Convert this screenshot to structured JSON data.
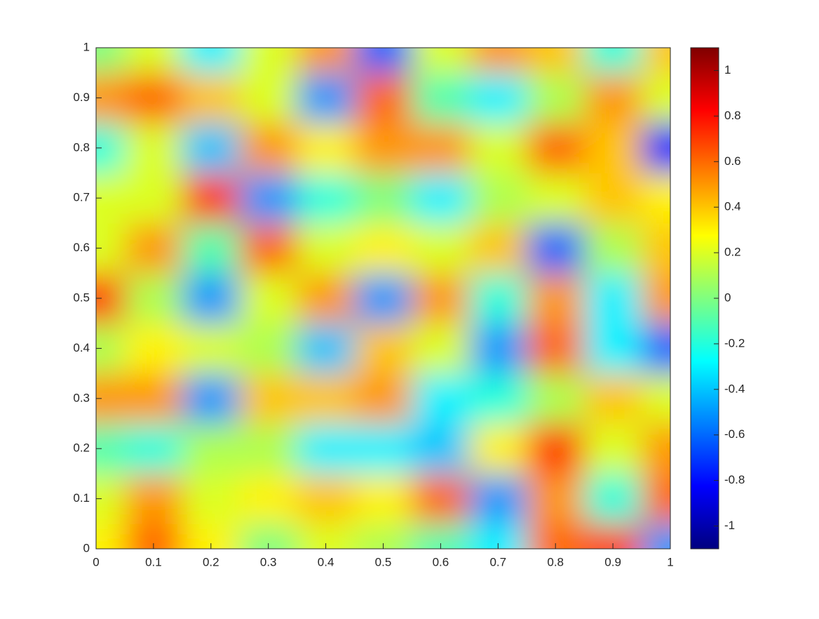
{
  "chart_data": {
    "type": "contour",
    "colormap": "jet",
    "x": [
      0,
      0.1,
      0.2,
      0.3,
      0.4,
      0.5,
      0.6,
      0.7,
      0.8,
      0.9,
      1
    ],
    "y": [
      0,
      0.1,
      0.2,
      0.3,
      0.4,
      0.5,
      0.6,
      0.7,
      0.8,
      0.9,
      1
    ],
    "z": [
      [
        0.3,
        0.6,
        0.3,
        0.0,
        0.2,
        0.1,
        -0.1,
        -0.3,
        0.6,
        0.7,
        -0.5
      ],
      [
        0.2,
        0.5,
        0.2,
        0.3,
        0.4,
        0.3,
        0.6,
        -0.5,
        0.5,
        -0.2,
        0.6
      ],
      [
        -0.1,
        -0.2,
        0.1,
        0.1,
        -0.3,
        -0.3,
        -0.4,
        0.3,
        0.7,
        0.2,
        0.5
      ],
      [
        0.5,
        0.5,
        -0.5,
        0.4,
        0.4,
        0.5,
        -0.3,
        -0.2,
        0.1,
        0.4,
        0.2
      ],
      [
        0.1,
        0.3,
        0.2,
        0.1,
        -0.4,
        0.4,
        0.2,
        -0.5,
        0.6,
        -0.3,
        -0.6
      ],
      [
        0.7,
        0.1,
        -0.5,
        0.2,
        0.5,
        -0.5,
        0.5,
        -0.2,
        0.5,
        -0.3,
        0.5
      ],
      [
        0.2,
        0.5,
        -0.1,
        0.6,
        0.2,
        0.3,
        0.2,
        0.4,
        -0.6,
        0.1,
        0.4
      ],
      [
        0.2,
        0.2,
        0.7,
        -0.5,
        -0.2,
        0.0,
        -0.3,
        0.1,
        0.2,
        0.4,
        0.3
      ],
      [
        -0.2,
        0.2,
        -0.4,
        0.5,
        0.3,
        0.5,
        0.5,
        0.2,
        0.6,
        0.4,
        -0.8
      ],
      [
        0.5,
        0.6,
        0.4,
        0.2,
        -0.5,
        0.6,
        -0.1,
        -0.3,
        0.1,
        0.5,
        0.2
      ],
      [
        0,
        0.2,
        -0.3,
        0.2,
        0.5,
        -0.6,
        0.2,
        0.5,
        0.4,
        -0.2,
        0.4
      ]
    ],
    "xlim": [
      0,
      1
    ],
    "ylim": [
      0,
      1
    ],
    "xticks": [
      0,
      0.1,
      0.2,
      0.3,
      0.4,
      0.5,
      0.6,
      0.7,
      0.8,
      0.9,
      1
    ],
    "yticks": [
      0,
      0.1,
      0.2,
      0.3,
      0.4,
      0.5,
      0.6,
      0.7,
      0.8,
      0.9,
      1
    ],
    "clim": [
      -1.1,
      1.1
    ],
    "cticks": [
      -1,
      -0.8,
      -0.6,
      -0.4,
      -0.2,
      0,
      0.2,
      0.4,
      0.6,
      0.8,
      1
    ]
  }
}
